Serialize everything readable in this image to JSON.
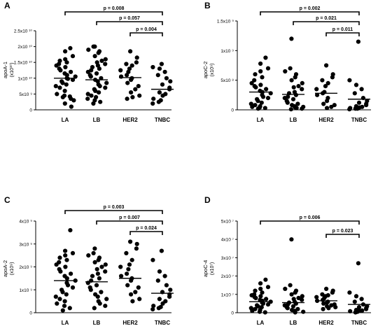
{
  "panels": [
    {
      "letter": "A",
      "ylabel": "apoA-1",
      "yunit": "(x10¹⁰)",
      "yticks": [
        {
          "v": 0,
          "label": "0"
        },
        {
          "v": 0.5,
          "label": "5x10 ⁹"
        },
        {
          "v": 1.0,
          "label": "1x10 ¹⁰"
        },
        {
          "v": 1.5,
          "label": "1.5x10 ¹⁰"
        },
        {
          "v": 2.0,
          "label": "2x10 ¹⁰"
        },
        {
          "v": 2.5,
          "label": "2.5x10 ¹⁰"
        }
      ],
      "brackets": [
        {
          "from": 0,
          "to": 3,
          "label": "p = 0.008"
        },
        {
          "from": 1,
          "to": 3,
          "label": "p = 0.057"
        },
        {
          "from": 2,
          "to": 3,
          "label": "p = 0.004"
        }
      ]
    },
    {
      "letter": "B",
      "ylabel": "apoC-2",
      "yunit": "(x10⁹)",
      "yticks": [
        {
          "v": 0,
          "label": "0"
        },
        {
          "v": 0.5,
          "label": "5x10 ⁸"
        },
        {
          "v": 1.0,
          "label": "1x10 ⁹"
        },
        {
          "v": 1.5,
          "label": "1.5x10 ⁹"
        }
      ],
      "brackets": [
        {
          "from": 0,
          "to": 3,
          "label": "p = 0.002"
        },
        {
          "from": 1,
          "to": 3,
          "label": "p = 0.021"
        },
        {
          "from": 2,
          "to": 3,
          "label": "p = 0.011"
        }
      ]
    },
    {
      "letter": "C",
      "ylabel": "apoA-2",
      "yunit": "(x10⁹)",
      "yticks": [
        {
          "v": 0,
          "label": "0"
        },
        {
          "v": 1,
          "label": "1x10 ⁹"
        },
        {
          "v": 2,
          "label": "2x10 ⁹"
        },
        {
          "v": 3,
          "label": "3x10 ⁹"
        },
        {
          "v": 4,
          "label": "4x10 ⁹"
        }
      ],
      "brackets": [
        {
          "from": 0,
          "to": 3,
          "label": "p = 0.003"
        },
        {
          "from": 1,
          "to": 3,
          "label": "p = 0.007"
        },
        {
          "from": 2,
          "to": 3,
          "label": "p = 0.024"
        }
      ]
    },
    {
      "letter": "D",
      "ylabel": "apoC-4",
      "yunit": "(x10⁷)",
      "yticks": [
        {
          "v": 0,
          "label": "0"
        },
        {
          "v": 1,
          "label": "1x10 ⁷"
        },
        {
          "v": 2,
          "label": "2x10 ⁷"
        },
        {
          "v": 3,
          "label": "3x10 ⁷"
        },
        {
          "v": 4,
          "label": "4x10 ⁷"
        },
        {
          "v": 5,
          "label": "5x10 ⁷"
        }
      ],
      "brackets": [
        {
          "from": 0,
          "to": 3,
          "label": "p = 0.006"
        },
        {
          "from": 2,
          "to": 3,
          "label": "p = 0.023"
        }
      ]
    }
  ],
  "chart_data": [
    {
      "type": "scatter",
      "categories": [
        "LA",
        "LB",
        "HER2",
        "TNBC"
      ],
      "ylabel": "apoA-1 (x10¹⁰)",
      "ylim": [
        0,
        2.5
      ],
      "medians": [
        1.0,
        0.95,
        1.02,
        0.65
      ],
      "series": [
        {
          "values": [
            1.95,
            1.85,
            1.7,
            1.6,
            1.55,
            1.5,
            1.45,
            1.4,
            1.35,
            1.3,
            1.25,
            1.2,
            1.15,
            1.1,
            1.05,
            1.0,
            0.98,
            0.95,
            0.9,
            0.85,
            0.8,
            0.75,
            0.7,
            0.6,
            0.5,
            0.45,
            0.42,
            0.4,
            0.35,
            0.3,
            0.2,
            0.1
          ]
        },
        {
          "values": [
            2.0,
            2.0,
            1.9,
            1.85,
            1.8,
            1.7,
            1.6,
            1.55,
            1.5,
            1.45,
            1.4,
            1.35,
            1.3,
            1.25,
            1.2,
            1.15,
            1.1,
            1.05,
            1.0,
            0.95,
            0.9,
            0.85,
            0.8,
            0.75,
            0.7,
            0.65,
            0.6,
            0.55,
            0.5,
            0.45,
            0.4,
            0.35,
            0.3,
            0.25,
            0.2
          ]
        },
        {
          "values": [
            1.85,
            1.65,
            1.5,
            1.45,
            1.4,
            1.3,
            1.25,
            1.2,
            1.1,
            1.05,
            1.0,
            0.95,
            0.85,
            0.75,
            0.65,
            0.55,
            0.45,
            0.4,
            0.35
          ]
        },
        {
          "values": [
            1.45,
            1.35,
            1.3,
            1.2,
            1.1,
            1.0,
            0.9,
            0.8,
            0.7,
            0.65,
            0.55,
            0.5,
            0.45,
            0.35,
            0.3,
            0.25,
            0.2
          ]
        }
      ]
    },
    {
      "type": "scatter",
      "categories": [
        "LA",
        "LB",
        "HER2",
        "TNBC"
      ],
      "ylabel": "apoC-2 (x10⁹)",
      "ylim": [
        0,
        1.5
      ],
      "medians": [
        0.3,
        0.26,
        0.28,
        0.18
      ],
      "series": [
        {
          "values": [
            0.88,
            0.78,
            0.7,
            0.65,
            0.6,
            0.55,
            0.5,
            0.45,
            0.42,
            0.4,
            0.38,
            0.35,
            0.32,
            0.3,
            0.28,
            0.25,
            0.22,
            0.2,
            0.18,
            0.15,
            0.12,
            0.1,
            0.08,
            0.06,
            0.05,
            0.04,
            0.03,
            0.02
          ]
        },
        {
          "values": [
            1.2,
            0.7,
            0.65,
            0.6,
            0.55,
            0.5,
            0.45,
            0.4,
            0.38,
            0.35,
            0.3,
            0.28,
            0.25,
            0.22,
            0.2,
            0.18,
            0.15,
            0.12,
            0.1,
            0.08,
            0.06,
            0.05,
            0.04,
            0.03,
            0.02,
            0.01
          ]
        },
        {
          "values": [
            0.75,
            0.6,
            0.55,
            0.5,
            0.45,
            0.4,
            0.35,
            0.3,
            0.28,
            0.25,
            0.2,
            0.15,
            0.1,
            0.08,
            0.05,
            0.03
          ]
        },
        {
          "values": [
            1.15,
            0.5,
            0.42,
            0.35,
            0.28,
            0.2,
            0.15,
            0.12,
            0.1,
            0.08,
            0.06,
            0.05,
            0.04,
            0.03,
            0.02,
            0.02,
            0.01
          ]
        }
      ]
    },
    {
      "type": "scatter",
      "categories": [
        "LA",
        "LB",
        "HER2",
        "TNBC"
      ],
      "ylabel": "apoA-2 (x10⁹)",
      "ylim": [
        0,
        4
      ],
      "medians": [
        1.4,
        1.35,
        1.5,
        0.85
      ],
      "series": [
        {
          "values": [
            3.6,
            2.7,
            2.6,
            2.5,
            2.4,
            2.3,
            2.2,
            2.1,
            2.0,
            1.9,
            1.8,
            1.7,
            1.6,
            1.5,
            1.4,
            1.3,
            1.2,
            1.1,
            1.0,
            0.9,
            0.8,
            0.7,
            0.6,
            0.5,
            0.4,
            0.3,
            0.2,
            0.1
          ]
        },
        {
          "values": [
            2.8,
            2.6,
            2.5,
            2.4,
            2.3,
            2.2,
            2.1,
            2.0,
            1.9,
            1.8,
            1.7,
            1.6,
            1.5,
            1.4,
            1.3,
            1.2,
            1.1,
            1.0,
            0.9,
            0.8,
            0.7,
            0.6,
            0.5,
            0.4,
            0.3,
            0.2
          ]
        },
        {
          "values": [
            3.1,
            3.0,
            2.8,
            2.6,
            2.3,
            2.1,
            2.0,
            1.9,
            1.7,
            1.6,
            1.5,
            1.4,
            1.2,
            1.1,
            0.9,
            0.8,
            0.6,
            0.5
          ]
        },
        {
          "values": [
            2.7,
            2.3,
            1.8,
            1.6,
            1.4,
            1.2,
            1.0,
            0.9,
            0.8,
            0.7,
            0.6,
            0.5,
            0.4,
            0.3,
            0.25,
            0.2,
            0.15
          ]
        }
      ]
    },
    {
      "type": "scatter",
      "categories": [
        "LA",
        "LB",
        "HER2",
        "TNBC"
      ],
      "ylabel": "apoC-4 (x10⁷)",
      "ylim": [
        0,
        5
      ],
      "medians": [
        0.6,
        0.55,
        0.65,
        0.45
      ],
      "series": [
        {
          "values": [
            1.8,
            1.6,
            1.4,
            1.3,
            1.2,
            1.1,
            1.0,
            0.95,
            0.9,
            0.85,
            0.8,
            0.75,
            0.7,
            0.65,
            0.6,
            0.55,
            0.5,
            0.45,
            0.4,
            0.35,
            0.3,
            0.25,
            0.2,
            0.15,
            0.1,
            0.05,
            0.02
          ]
        },
        {
          "values": [
            4.0,
            1.5,
            1.3,
            1.2,
            1.1,
            1.0,
            0.9,
            0.8,
            0.75,
            0.7,
            0.6,
            0.55,
            0.5,
            0.45,
            0.4,
            0.35,
            0.3,
            0.25,
            0.2,
            0.15,
            0.1,
            0.05,
            0.02
          ]
        },
        {
          "values": [
            1.3,
            1.2,
            1.1,
            1.0,
            0.95,
            0.9,
            0.85,
            0.8,
            0.7,
            0.65,
            0.6,
            0.55,
            0.5,
            0.45,
            0.4,
            0.35,
            0.3,
            0.25,
            0.2
          ]
        },
        {
          "values": [
            2.7,
            1.1,
            0.9,
            0.75,
            0.6,
            0.45,
            0.35,
            0.3,
            0.25,
            0.2,
            0.15,
            0.12,
            0.1,
            0.08,
            0.05,
            0.02
          ]
        }
      ]
    }
  ]
}
